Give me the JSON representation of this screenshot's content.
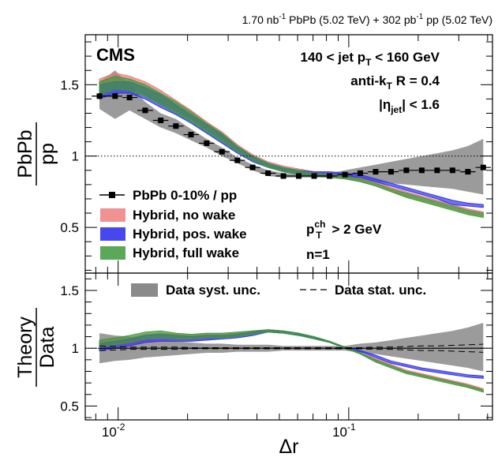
{
  "header": {
    "lumi_pbpb": "1.70 nb",
    "lumi_pbpb_unit": "-1",
    "lumi_pbpb_text": " PbPb (5.02 TeV) + 302 pb",
    "lumi_pp_unit": "-1",
    "lumi_pp_text": " pp (5.02 TeV)"
  },
  "top_panel": {
    "experiment": "CMS",
    "cut_pt": "140 < jet p",
    "cut_pt_sub": "T",
    "cut_pt_tail": " < 160 GeV",
    "algo": "anti-k",
    "algo_sub": "T",
    "algo_tail": " R = 0.4",
    "eta_pre": "|η",
    "eta_sub": "jet",
    "eta_tail": "| < 1.6",
    "track_pre": "p",
    "track_sup": "ch",
    "track_sub": "T",
    "track_tail": " > 2 GeV",
    "n_label": "n=1",
    "ylabel_num": "PbPb",
    "ylabel_den": "pp"
  },
  "bottom_panel": {
    "legend_syst": "Data syst. unc.",
    "legend_stat": "Data stat. unc.",
    "ylabel_num": "Theory",
    "ylabel_den": "Data"
  },
  "xaxis_label": "Δr",
  "colors": {
    "data": "#000000",
    "syst_band": "#8a8a8a",
    "no_wake": "#ee7777",
    "pos_wake": "#3333ee",
    "full_wake": "#3c9a3c"
  },
  "chart_data": [
    {
      "type": "line",
      "panel": "top",
      "xscale": "log",
      "xlim": [
        0.0072,
        0.42
      ],
      "ylim": [
        0.18,
        1.85
      ],
      "yticks": [
        0.5,
        1,
        1.5
      ],
      "xticks": [
        0.01,
        0.1
      ],
      "xtick_labels": [
        [
          "10",
          "-2"
        ],
        [
          "10",
          "-1"
        ]
      ],
      "reference_line": 1,
      "x": [
        0.0083,
        0.0097,
        0.0112,
        0.0131,
        0.0153,
        0.0178,
        0.0207,
        0.0242,
        0.0282,
        0.0329,
        0.0383,
        0.0447,
        0.0521,
        0.0607,
        0.0708,
        0.0826,
        0.0963,
        0.1122,
        0.1308,
        0.1525,
        0.1778,
        0.2073,
        0.2417,
        0.2818,
        0.3286,
        0.383
      ],
      "series": [
        {
          "name": "PbPb 0-10% / pp",
          "kind": "data",
          "values": [
            1.42,
            1.42,
            1.41,
            1.32,
            1.25,
            1.21,
            1.15,
            1.09,
            1.03,
            0.97,
            0.92,
            0.88,
            0.86,
            0.86,
            0.86,
            0.86,
            0.87,
            0.88,
            0.89,
            0.89,
            0.9,
            0.9,
            0.9,
            0.9,
            0.89,
            0.92
          ],
          "syst_low": [
            1.33,
            1.26,
            1.32,
            1.26,
            1.2,
            1.16,
            1.11,
            1.06,
            1.0,
            0.95,
            0.9,
            0.86,
            0.85,
            0.85,
            0.85,
            0.85,
            0.84,
            0.83,
            0.82,
            0.81,
            0.8,
            0.79,
            0.78,
            0.77,
            0.75,
            0.73
          ],
          "syst_high": [
            1.52,
            1.6,
            1.5,
            1.38,
            1.3,
            1.26,
            1.19,
            1.12,
            1.06,
            0.99,
            0.94,
            0.9,
            0.88,
            0.87,
            0.87,
            0.88,
            0.9,
            0.92,
            0.94,
            0.96,
            0.98,
            1.0,
            1.02,
            1.04,
            1.07,
            1.12
          ]
        },
        {
          "name": "Hybrid, no wake",
          "kind": "band",
          "low": [
            1.45,
            1.5,
            1.48,
            1.43,
            1.37,
            1.32,
            1.26,
            1.19,
            1.12,
            1.04,
            0.97,
            0.93,
            0.9,
            0.88,
            0.86,
            0.85,
            0.84,
            0.82,
            0.79,
            0.75,
            0.72,
            0.69,
            0.66,
            0.63,
            0.6,
            0.58
          ],
          "high": [
            1.54,
            1.58,
            1.56,
            1.52,
            1.46,
            1.39,
            1.32,
            1.24,
            1.17,
            1.08,
            1.01,
            0.96,
            0.93,
            0.91,
            0.89,
            0.88,
            0.87,
            0.85,
            0.82,
            0.78,
            0.75,
            0.72,
            0.69,
            0.66,
            0.63,
            0.61
          ]
        },
        {
          "name": "Hybrid, pos. wake",
          "kind": "band",
          "low": [
            1.4,
            1.44,
            1.44,
            1.4,
            1.34,
            1.29,
            1.23,
            1.16,
            1.09,
            1.02,
            0.96,
            0.92,
            0.89,
            0.87,
            0.86,
            0.86,
            0.86,
            0.85,
            0.82,
            0.79,
            0.76,
            0.73,
            0.7,
            0.66,
            0.65,
            0.64
          ],
          "high": [
            1.5,
            1.52,
            1.52,
            1.48,
            1.43,
            1.36,
            1.29,
            1.22,
            1.15,
            1.06,
            1.0,
            0.95,
            0.92,
            0.9,
            0.89,
            0.89,
            0.88,
            0.87,
            0.84,
            0.81,
            0.78,
            0.75,
            0.72,
            0.69,
            0.67,
            0.66
          ]
        },
        {
          "name": "Hybrid, full wake",
          "kind": "band",
          "low": [
            1.43,
            1.47,
            1.46,
            1.42,
            1.36,
            1.3,
            1.24,
            1.17,
            1.1,
            1.03,
            0.97,
            0.92,
            0.89,
            0.87,
            0.86,
            0.85,
            0.84,
            0.82,
            0.79,
            0.75,
            0.71,
            0.68,
            0.65,
            0.62,
            0.59,
            0.57
          ],
          "high": [
            1.52,
            1.56,
            1.54,
            1.5,
            1.44,
            1.38,
            1.31,
            1.23,
            1.16,
            1.07,
            1.0,
            0.95,
            0.92,
            0.9,
            0.88,
            0.87,
            0.86,
            0.84,
            0.81,
            0.77,
            0.74,
            0.71,
            0.68,
            0.65,
            0.62,
            0.6
          ]
        }
      ]
    },
    {
      "type": "line",
      "panel": "bottom",
      "xscale": "log",
      "xlim": [
        0.0072,
        0.42
      ],
      "ylim": [
        0.38,
        1.65
      ],
      "yticks": [
        0.5,
        1,
        1.5
      ],
      "reference_line": 1,
      "x": [
        0.0083,
        0.0097,
        0.0112,
        0.0131,
        0.0153,
        0.0178,
        0.0207,
        0.0242,
        0.0282,
        0.0329,
        0.0383,
        0.0447,
        0.0521,
        0.0607,
        0.0708,
        0.0826,
        0.0963,
        0.1122,
        0.1308,
        0.1525,
        0.1778,
        0.2073,
        0.2417,
        0.2818,
        0.3286,
        0.383
      ],
      "series": [
        {
          "name": "Data syst. unc.",
          "kind": "band",
          "low": [
            0.87,
            0.89,
            0.9,
            0.92,
            0.93,
            0.94,
            0.95,
            0.96,
            0.96,
            0.97,
            0.97,
            0.97,
            0.98,
            0.98,
            0.98,
            0.98,
            0.98,
            0.96,
            0.95,
            0.93,
            0.91,
            0.89,
            0.87,
            0.85,
            0.83,
            0.8
          ],
          "high": [
            1.13,
            1.11,
            1.1,
            1.08,
            1.07,
            1.06,
            1.05,
            1.04,
            1.04,
            1.03,
            1.03,
            1.03,
            1.02,
            1.02,
            1.02,
            1.02,
            1.02,
            1.04,
            1.05,
            1.07,
            1.09,
            1.11,
            1.13,
            1.15,
            1.18,
            1.22
          ]
        },
        {
          "name": "Data stat. unc.",
          "kind": "dashed",
          "low": [
            0.98,
            0.985,
            0.99,
            0.99,
            0.99,
            0.99,
            0.995,
            0.995,
            0.995,
            0.995,
            0.995,
            0.995,
            0.995,
            0.995,
            0.995,
            0.995,
            0.995,
            0.995,
            0.99,
            0.99,
            0.985,
            0.98,
            0.98,
            0.975,
            0.97,
            0.965
          ],
          "high": [
            1.02,
            1.015,
            1.01,
            1.01,
            1.01,
            1.01,
            1.005,
            1.005,
            1.005,
            1.005,
            1.005,
            1.005,
            1.005,
            1.005,
            1.005,
            1.005,
            1.005,
            1.005,
            1.01,
            1.01,
            1.015,
            1.02,
            1.02,
            1.025,
            1.03,
            1.035
          ]
        },
        {
          "name": "Hybrid, no wake",
          "kind": "band",
          "low": [
            1.0,
            1.02,
            1.03,
            1.06,
            1.07,
            1.07,
            1.07,
            1.08,
            1.09,
            1.1,
            1.12,
            1.14,
            1.13,
            1.11,
            1.09,
            1.05,
            1.0,
            0.95,
            0.89,
            0.84,
            0.79,
            0.76,
            0.73,
            0.7,
            0.67,
            0.63
          ],
          "high": [
            1.06,
            1.08,
            1.09,
            1.12,
            1.13,
            1.12,
            1.11,
            1.12,
            1.12,
            1.13,
            1.15,
            1.16,
            1.15,
            1.13,
            1.1,
            1.06,
            1.01,
            0.96,
            0.91,
            0.86,
            0.81,
            0.78,
            0.75,
            0.72,
            0.69,
            0.65
          ]
        },
        {
          "name": "Hybrid, pos. wake",
          "kind": "band",
          "low": [
            0.98,
            1.0,
            1.02,
            1.05,
            1.06,
            1.06,
            1.06,
            1.07,
            1.08,
            1.09,
            1.11,
            1.14,
            1.13,
            1.11,
            1.09,
            1.05,
            1.0,
            0.97,
            0.92,
            0.87,
            0.84,
            0.81,
            0.79,
            0.77,
            0.75,
            0.74
          ],
          "high": [
            1.04,
            1.06,
            1.08,
            1.11,
            1.12,
            1.11,
            1.1,
            1.11,
            1.11,
            1.12,
            1.14,
            1.16,
            1.15,
            1.13,
            1.1,
            1.06,
            1.01,
            0.98,
            0.94,
            0.89,
            0.86,
            0.83,
            0.81,
            0.79,
            0.77,
            0.76
          ]
        },
        {
          "name": "Hybrid, full wake",
          "kind": "band",
          "low": [
            1.01,
            1.03,
            1.05,
            1.08,
            1.09,
            1.08,
            1.08,
            1.09,
            1.09,
            1.1,
            1.12,
            1.14,
            1.13,
            1.11,
            1.08,
            1.05,
            1.0,
            0.95,
            0.88,
            0.83,
            0.78,
            0.75,
            0.72,
            0.69,
            0.66,
            0.62
          ],
          "high": [
            1.07,
            1.09,
            1.11,
            1.14,
            1.15,
            1.13,
            1.12,
            1.13,
            1.13,
            1.14,
            1.15,
            1.16,
            1.15,
            1.13,
            1.1,
            1.06,
            1.01,
            0.96,
            0.9,
            0.85,
            0.8,
            0.77,
            0.74,
            0.71,
            0.68,
            0.64
          ]
        }
      ]
    }
  ]
}
